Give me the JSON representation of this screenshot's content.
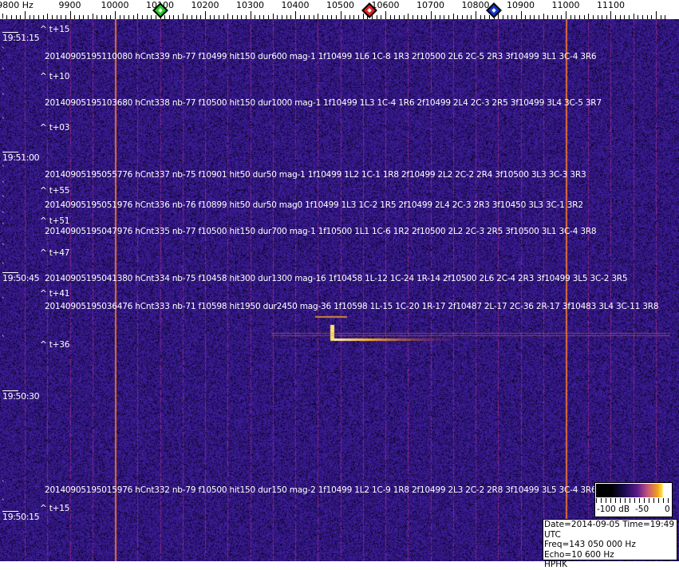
{
  "chart_data": {
    "type": "heatmap",
    "x_axis": {
      "unit_label": "9800 Hz",
      "ticks": [
        9800,
        9900,
        10000,
        10100,
        10200,
        10300,
        10400,
        10500,
        10600,
        10700,
        10800,
        10900,
        11000,
        11100
      ],
      "tick_labels": [
        "9800 Hz",
        "9900",
        "10000",
        "10100",
        "10200",
        "10300",
        "10400",
        "10500",
        "10600",
        "10700",
        "10800",
        "10900",
        "11000",
        "11100"
      ],
      "range": [
        9750,
        11225
      ]
    },
    "markers": [
      {
        "freq": 10100,
        "color": "#22cc22"
      },
      {
        "freq": 10565,
        "color": "#dd2222"
      },
      {
        "freq": 10840,
        "color": "#1133cc"
      }
    ],
    "strong_carriers_hz": [
      10000,
      11000
    ],
    "time_labels": [
      "19:51:15",
      "19:51:00",
      "19:50:45",
      "19:50:30",
      "19:50:15"
    ],
    "interval_labels": [
      "^ t+15",
      "^ t+10",
      "^ t+03",
      "^ t+55",
      "^ t+51",
      "^ t+47",
      "^ t+41",
      "^ t+36",
      "^ t+15"
    ],
    "detections": [
      "20140905195110080 hCnt339 nb-77 f10499 hit150 dur600 mag-1 1f10499 1L6 1C-8 1R3 2f10500 2L6 2C-5 2R3 3f10499 3L1 3C-4 3R6",
      "20140905195103680 hCnt338 nb-77 f10500 hit150 dur1000 mag-1 1f10499 1L3 1C-4 1R6 2f10499 2L4 2C-3 2R5 3f10499 3L4 3C-5 3R7",
      "20140905195055776 hCnt337 nb-75 f10901 hit50 dur50 mag-1 1f10499 1L2 1C-1 1R8 2f10499 2L2 2C-2 2R4 3f10500 3L3 3C-3 3R3",
      "20140905195051976 hCnt336 nb-76 f10899 hit50 dur50 mag0 1f10499 1L3 1C-2 1R5 2f10499 2L4 2C-3 2R3 3f10450 3L3 3C-1 3R2",
      "20140905195047976 hCnt335 nb-77 f10500 hit150 dur700 mag-1 1f10500 1L1 1C-6 1R2 2f10500 2L2 2C-3 2R5 3f10500 3L1 3C-4 3R8",
      "20140905195041380 hCnt334 nb-75 f10458 hit300 dur1300 mag-16 1f10458 1L-12 1C-24 1R-14 2f10500 2L6 2C-4 2R3 3f10499 3L5 3C-2 3R5",
      "20140905195036476 hCnt333 nb-71 f10598 hit1950 dur2450 mag-36 1f10598 1L-15 1C-20 1R-17 2f10487 2L-17 2C-36 2R-17 3f10483 3L4 3C-11 3R8",
      "20140905195015976 hCnt332 nb-79 f10500 hit150 dur150 mag-2 1f10499 1L2 1C-9 1R8 2f10499 2L3 2C-2 2R8 3f10499 3L5 3C-4 3R6"
    ],
    "colorbar": {
      "labels": [
        "-100 dB",
        "-50",
        "0"
      ],
      "range_db": [
        -100,
        0
      ]
    }
  },
  "info": {
    "line1": "Date=2014-09-05 Time=19:49 UTC",
    "line2": "Freq=143 050 000 Hz",
    "line3": "Echo=10 600 Hz",
    "line4": "HPHK"
  }
}
